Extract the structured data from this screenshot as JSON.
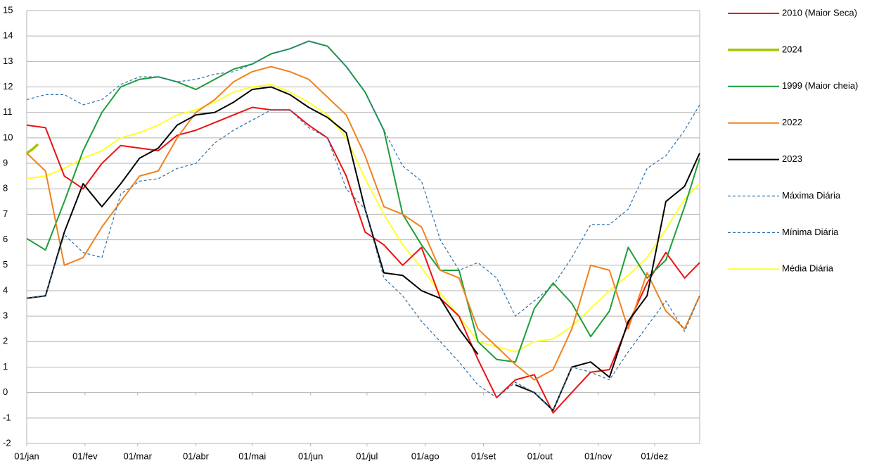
{
  "chart_data": {
    "type": "line",
    "x": [
      0,
      10,
      20,
      30,
      40,
      50,
      60,
      70,
      80,
      90,
      100,
      110,
      120,
      130,
      140,
      150,
      160,
      170,
      180,
      190,
      200,
      210,
      220,
      230,
      240,
      250,
      260,
      270,
      280,
      290,
      300,
      310,
      320,
      330,
      340,
      350,
      358
    ],
    "xlim": [
      0,
      358
    ],
    "xticks": [
      {
        "value": 0,
        "label": "01/jan"
      },
      {
        "value": 31,
        "label": "01/fev"
      },
      {
        "value": 59,
        "label": "01/mar"
      },
      {
        "value": 90,
        "label": "01/abr"
      },
      {
        "value": 120,
        "label": "01/mai"
      },
      {
        "value": 151,
        "label": "01/jun"
      },
      {
        "value": 181,
        "label": "01/jul"
      },
      {
        "value": 212,
        "label": "01/ago"
      },
      {
        "value": 243,
        "label": "01/set"
      },
      {
        "value": 273,
        "label": "01/out"
      },
      {
        "value": 304,
        "label": "01/nov"
      },
      {
        "value": 334,
        "label": "01/dez"
      }
    ],
    "ylim": [
      -2,
      15
    ],
    "yticks": [
      -2,
      -1,
      0,
      1,
      2,
      3,
      4,
      5,
      6,
      7,
      8,
      9,
      10,
      11,
      12,
      13,
      14,
      15
    ],
    "grid": true,
    "legend": "right",
    "series": [
      {
        "name": "2010 (Maior Seca)",
        "color": "#ee1111",
        "values": [
          10.5,
          10.4,
          8.5,
          8.0,
          9.0,
          9.7,
          9.6,
          9.5,
          10.1,
          10.3,
          10.6,
          10.9,
          11.2,
          11.1,
          11.1,
          10.5,
          10.0,
          8.5,
          6.3,
          5.8,
          5.0,
          5.7,
          3.7,
          3.0,
          1.3,
          -0.2,
          0.5,
          0.7,
          -0.8,
          0.0,
          0.8,
          0.9,
          2.7,
          4.3,
          5.5,
          4.5,
          5.1
        ]
      },
      {
        "name": "2024",
        "color": "#a5c400",
        "line_width": 3.5,
        "x": [
          0,
          3,
          6
        ],
        "values": [
          9.4,
          9.55,
          9.75
        ]
      },
      {
        "name": "1999 (Maior cheia)",
        "color": "#1e9e3a",
        "values": [
          6.05,
          5.6,
          7.5,
          9.5,
          11.0,
          12.0,
          12.3,
          12.4,
          12.2,
          11.9,
          12.3,
          12.7,
          12.9,
          13.3,
          13.5,
          13.8,
          13.6,
          12.8,
          11.8,
          10.3,
          7.0,
          5.8,
          4.8,
          4.8,
          2.0,
          1.3,
          1.2,
          3.3,
          4.3,
          3.5,
          2.2,
          3.2,
          5.7,
          4.5,
          5.2,
          7.3,
          9.2
        ]
      },
      {
        "name": "2022",
        "color": "#f0821e",
        "values": [
          9.4,
          8.7,
          5.0,
          5.3,
          6.5,
          7.5,
          8.5,
          8.7,
          10.0,
          11.0,
          11.5,
          12.2,
          12.6,
          12.8,
          12.6,
          12.3,
          11.6,
          10.9,
          9.3,
          7.3,
          7.0,
          6.5,
          4.8,
          4.5,
          2.5,
          1.8,
          1.1,
          0.5,
          0.9,
          2.5,
          5.0,
          4.8,
          2.5,
          4.7,
          3.2,
          2.5,
          3.8
        ]
      },
      {
        "name": "2023",
        "color": "#000000",
        "values": [
          3.7,
          3.8,
          6.3,
          8.2,
          7.3,
          8.2,
          9.2,
          9.6,
          10.5,
          10.9,
          11.0,
          11.4,
          11.9,
          12.0,
          11.7,
          11.2,
          10.8,
          10.2,
          7.2,
          4.7,
          4.6,
          4.0,
          3.7,
          2.5,
          1.5,
          null,
          0.3,
          0.0,
          -0.7,
          1.0,
          1.2,
          0.6,
          2.8,
          3.8,
          7.5,
          8.1,
          9.4
        ]
      },
      {
        "name": "Máxima Diária",
        "color": "#2f6fa8",
        "dashed": true,
        "values": [
          11.5,
          11.7,
          11.7,
          11.3,
          11.5,
          12.1,
          12.4,
          12.4,
          12.2,
          12.3,
          12.5,
          12.6,
          12.9,
          13.3,
          13.5,
          13.8,
          13.6,
          12.8,
          11.8,
          10.3,
          8.9,
          8.3,
          6.0,
          4.8,
          5.1,
          4.5,
          3.0,
          3.6,
          4.2,
          5.3,
          6.6,
          6.6,
          7.2,
          8.8,
          9.3,
          10.3,
          11.3
        ]
      },
      {
        "name": "Mínima Diária",
        "color": "#2f6fa8",
        "dashed": true,
        "values": [
          3.7,
          3.8,
          6.2,
          5.5,
          5.3,
          7.8,
          8.3,
          8.4,
          8.8,
          9.0,
          9.8,
          10.3,
          10.7,
          11.1,
          11.1,
          10.4,
          10.0,
          8.0,
          7.2,
          4.5,
          3.8,
          2.8,
          2.0,
          1.2,
          0.3,
          -0.2,
          0.4,
          0.0,
          -0.7,
          1.0,
          0.8,
          0.5,
          1.6,
          2.6,
          3.6,
          2.4,
          3.8
        ]
      },
      {
        "name": "Média Diária",
        "color": "#ffff2a",
        "values": [
          8.4,
          8.5,
          8.8,
          9.2,
          9.5,
          10.0,
          10.2,
          10.5,
          10.9,
          11.1,
          11.4,
          11.8,
          12.0,
          12.1,
          11.8,
          11.4,
          10.9,
          10.0,
          8.4,
          7.0,
          5.8,
          4.9,
          3.9,
          3.0,
          2.0,
          1.8,
          1.6,
          2.0,
          2.1,
          2.6,
          3.3,
          4.0,
          4.6,
          5.3,
          6.4,
          7.6,
          8.2
        ]
      }
    ]
  }
}
